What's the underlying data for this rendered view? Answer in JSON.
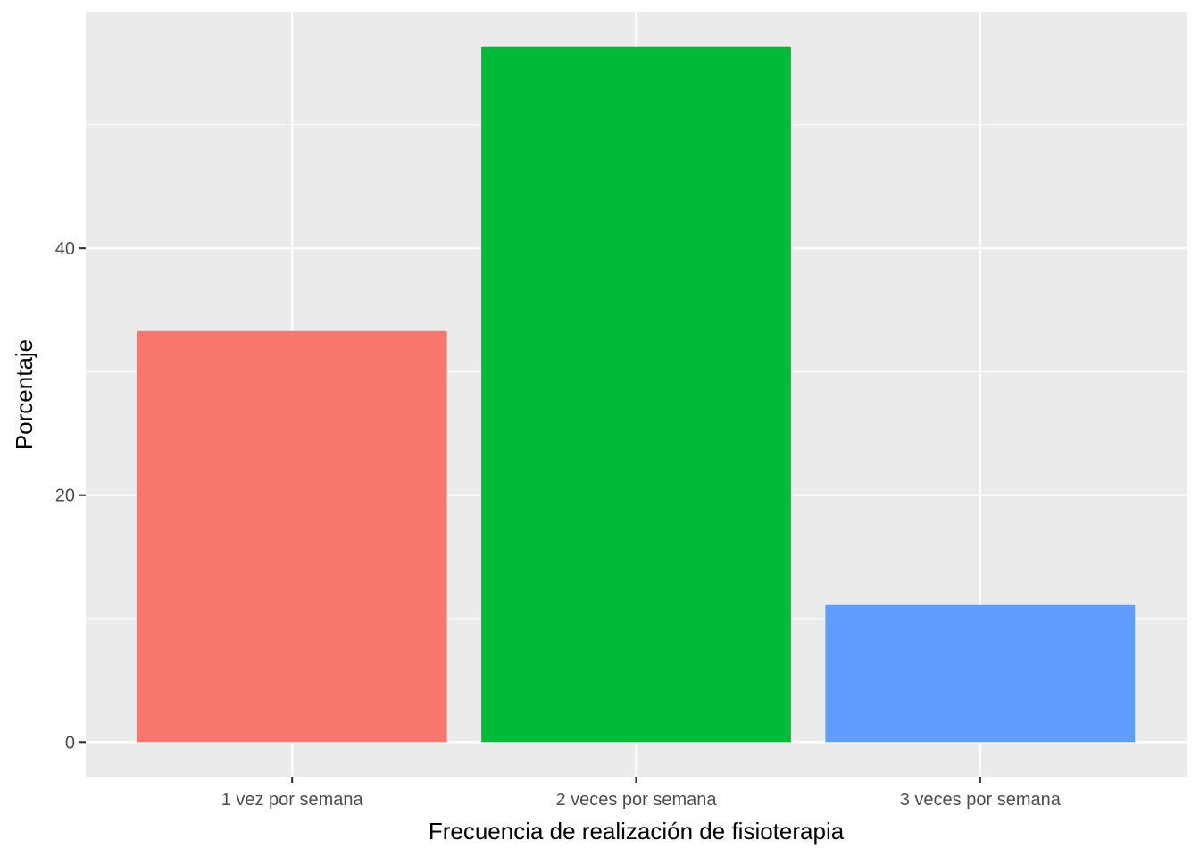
{
  "chart_data": {
    "type": "bar",
    "categories": [
      "1 vez por semana",
      "2 veces por semana",
      "3 veces por semana"
    ],
    "values": [
      33.3,
      56.3,
      11.1
    ],
    "colors": [
      "#F8766D",
      "#00BA38",
      "#619CFF"
    ],
    "xlabel": "Frecuencia de realización de fisioterapia",
    "ylabel": "Porcentaje",
    "ylim": [
      -2.8,
      59.1
    ],
    "yticks": [
      0,
      20,
      40
    ],
    "yticks_labels": [
      "0",
      "20",
      "40"
    ],
    "grid": true,
    "panel_background": "#EBEBEB"
  }
}
